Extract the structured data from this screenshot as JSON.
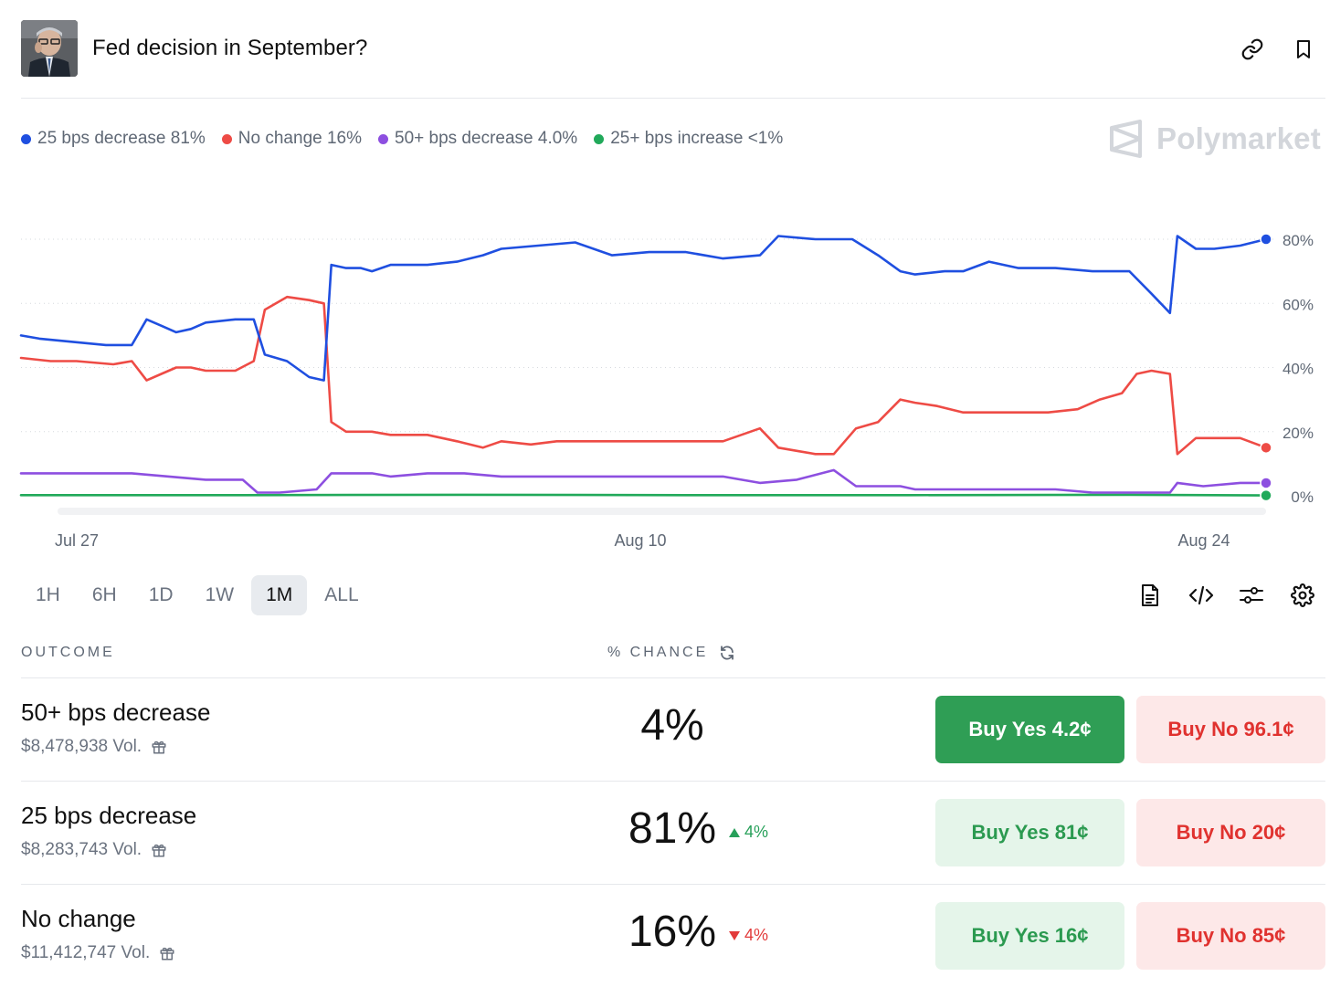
{
  "header": {
    "title": "Fed decision in September?",
    "link_icon": "link-icon",
    "bookmark_icon": "bookmark-icon"
  },
  "legend": [
    {
      "label": "25 bps decrease 81%",
      "color": "#1f4fe0"
    },
    {
      "label": "No change 16%",
      "color": "#ee4b45"
    },
    {
      "label": "50+ bps decrease 4.0%",
      "color": "#8d4fe0"
    },
    {
      "label": "25+ bps increase <1%",
      "color": "#21a95a"
    }
  ],
  "brand": "Polymarket",
  "chart_data": {
    "type": "line",
    "x_ticks": [
      "Jul 27",
      "Aug 10",
      "Aug 24"
    ],
    "y_ticks": [
      "0%",
      "20%",
      "40%",
      "60%",
      "80%"
    ],
    "ylim": [
      0,
      80
    ],
    "grid": true,
    "series": [
      {
        "name": "25 bps decrease",
        "color": "#1f4fe0",
        "points": [
          [
            0,
            50
          ],
          [
            5,
            49
          ],
          [
            14,
            48
          ],
          [
            23,
            47
          ],
          [
            30,
            47
          ],
          [
            34,
            55
          ],
          [
            38,
            53
          ],
          [
            42,
            51
          ],
          [
            46,
            52
          ],
          [
            50,
            54
          ],
          [
            58,
            55
          ],
          [
            63,
            55
          ],
          [
            66,
            44
          ],
          [
            72,
            42
          ],
          [
            78,
            37
          ],
          [
            82,
            36
          ],
          [
            84,
            72
          ],
          [
            88,
            71
          ],
          [
            92,
            71
          ],
          [
            95,
            70
          ],
          [
            100,
            72
          ],
          [
            110,
            72
          ],
          [
            118,
            73
          ],
          [
            125,
            75
          ],
          [
            130,
            77
          ],
          [
            140,
            78
          ],
          [
            150,
            79
          ],
          [
            160,
            75
          ],
          [
            170,
            76
          ],
          [
            180,
            76
          ],
          [
            190,
            74
          ],
          [
            200,
            75
          ],
          [
            205,
            81
          ],
          [
            215,
            80
          ],
          [
            225,
            80
          ],
          [
            232,
            75
          ],
          [
            238,
            70
          ],
          [
            242,
            69
          ],
          [
            250,
            70
          ],
          [
            255,
            70
          ],
          [
            262,
            73
          ],
          [
            270,
            71
          ],
          [
            280,
            71
          ],
          [
            290,
            70
          ],
          [
            300,
            70
          ],
          [
            306,
            63
          ],
          [
            311,
            57
          ],
          [
            313,
            81
          ],
          [
            318,
            77
          ],
          [
            323,
            77
          ],
          [
            330,
            78
          ],
          [
            337,
            80
          ]
        ]
      },
      {
        "name": "No change",
        "color": "#ee4b45",
        "points": [
          [
            0,
            43
          ],
          [
            8,
            42
          ],
          [
            15,
            42
          ],
          [
            25,
            41
          ],
          [
            30,
            42
          ],
          [
            34,
            36
          ],
          [
            38,
            38
          ],
          [
            42,
            40
          ],
          [
            46,
            40
          ],
          [
            50,
            39
          ],
          [
            58,
            39
          ],
          [
            63,
            42
          ],
          [
            66,
            58
          ],
          [
            72,
            62
          ],
          [
            78,
            61
          ],
          [
            82,
            60
          ],
          [
            84,
            23
          ],
          [
            88,
            20
          ],
          [
            95,
            20
          ],
          [
            100,
            19
          ],
          [
            110,
            19
          ],
          [
            118,
            17
          ],
          [
            125,
            15
          ],
          [
            130,
            17
          ],
          [
            138,
            16
          ],
          [
            145,
            17
          ],
          [
            150,
            17
          ],
          [
            160,
            17
          ],
          [
            170,
            17
          ],
          [
            180,
            17
          ],
          [
            190,
            17
          ],
          [
            200,
            21
          ],
          [
            205,
            15
          ],
          [
            210,
            14
          ],
          [
            215,
            13
          ],
          [
            220,
            13
          ],
          [
            226,
            21
          ],
          [
            232,
            23
          ],
          [
            238,
            30
          ],
          [
            242,
            29
          ],
          [
            248,
            28
          ],
          [
            255,
            26
          ],
          [
            262,
            26
          ],
          [
            270,
            26
          ],
          [
            278,
            26
          ],
          [
            286,
            27
          ],
          [
            292,
            30
          ],
          [
            298,
            32
          ],
          [
            302,
            38
          ],
          [
            306,
            39
          ],
          [
            311,
            38
          ],
          [
            313,
            13
          ],
          [
            318,
            18
          ],
          [
            325,
            18
          ],
          [
            330,
            18
          ],
          [
            337,
            15
          ]
        ]
      },
      {
        "name": "50+ bps decrease",
        "color": "#8d4fe0",
        "points": [
          [
            0,
            7
          ],
          [
            10,
            7
          ],
          [
            20,
            7
          ],
          [
            30,
            7
          ],
          [
            40,
            6
          ],
          [
            50,
            5
          ],
          [
            56,
            5
          ],
          [
            60,
            5
          ],
          [
            64,
            1
          ],
          [
            70,
            1
          ],
          [
            80,
            2
          ],
          [
            84,
            7
          ],
          [
            90,
            7
          ],
          [
            95,
            7
          ],
          [
            100,
            6
          ],
          [
            110,
            7
          ],
          [
            120,
            7
          ],
          [
            130,
            6
          ],
          [
            140,
            6
          ],
          [
            150,
            6
          ],
          [
            160,
            6
          ],
          [
            170,
            6
          ],
          [
            180,
            6
          ],
          [
            190,
            6
          ],
          [
            200,
            4
          ],
          [
            210,
            5
          ],
          [
            220,
            8
          ],
          [
            226,
            3
          ],
          [
            232,
            3
          ],
          [
            238,
            3
          ],
          [
            242,
            2
          ],
          [
            250,
            2
          ],
          [
            260,
            2
          ],
          [
            270,
            2
          ],
          [
            280,
            2
          ],
          [
            290,
            1
          ],
          [
            300,
            1
          ],
          [
            306,
            1
          ],
          [
            311,
            1
          ],
          [
            313,
            4
          ],
          [
            320,
            3
          ],
          [
            330,
            4
          ],
          [
            337,
            4
          ]
        ]
      },
      {
        "name": "25+ bps increase",
        "color": "#21a95a",
        "points": [
          [
            0,
            0.2
          ],
          [
            60,
            0.2
          ],
          [
            120,
            0.3
          ],
          [
            180,
            0.2
          ],
          [
            240,
            0.2
          ],
          [
            300,
            0.3
          ],
          [
            337,
            0.1
          ]
        ]
      }
    ]
  },
  "time_ranges": [
    "1H",
    "6H",
    "1D",
    "1W",
    "1M",
    "ALL"
  ],
  "active_range": "1M",
  "table": {
    "col_outcome": "OUTCOME",
    "col_chance": "% CHANCE",
    "rows": [
      {
        "name": "50+ bps decrease",
        "volume": "$8,478,938 Vol.",
        "chance": "4%",
        "delta": "",
        "delta_dir": "",
        "yes_label": "Buy Yes 4.2¢",
        "no_label": "Buy No 96.1¢",
        "yes_style": "solid"
      },
      {
        "name": "25 bps decrease",
        "volume": "$8,283,743 Vol.",
        "chance": "81%",
        "delta": "4%",
        "delta_dir": "up",
        "yes_label": "Buy Yes 81¢",
        "no_label": "Buy No 20¢",
        "yes_style": "soft"
      },
      {
        "name": "No change",
        "volume": "$11,412,747 Vol.",
        "chance": "16%",
        "delta": "4%",
        "delta_dir": "down",
        "yes_label": "Buy Yes 16¢",
        "no_label": "Buy No 85¢",
        "yes_style": "soft"
      }
    ]
  }
}
